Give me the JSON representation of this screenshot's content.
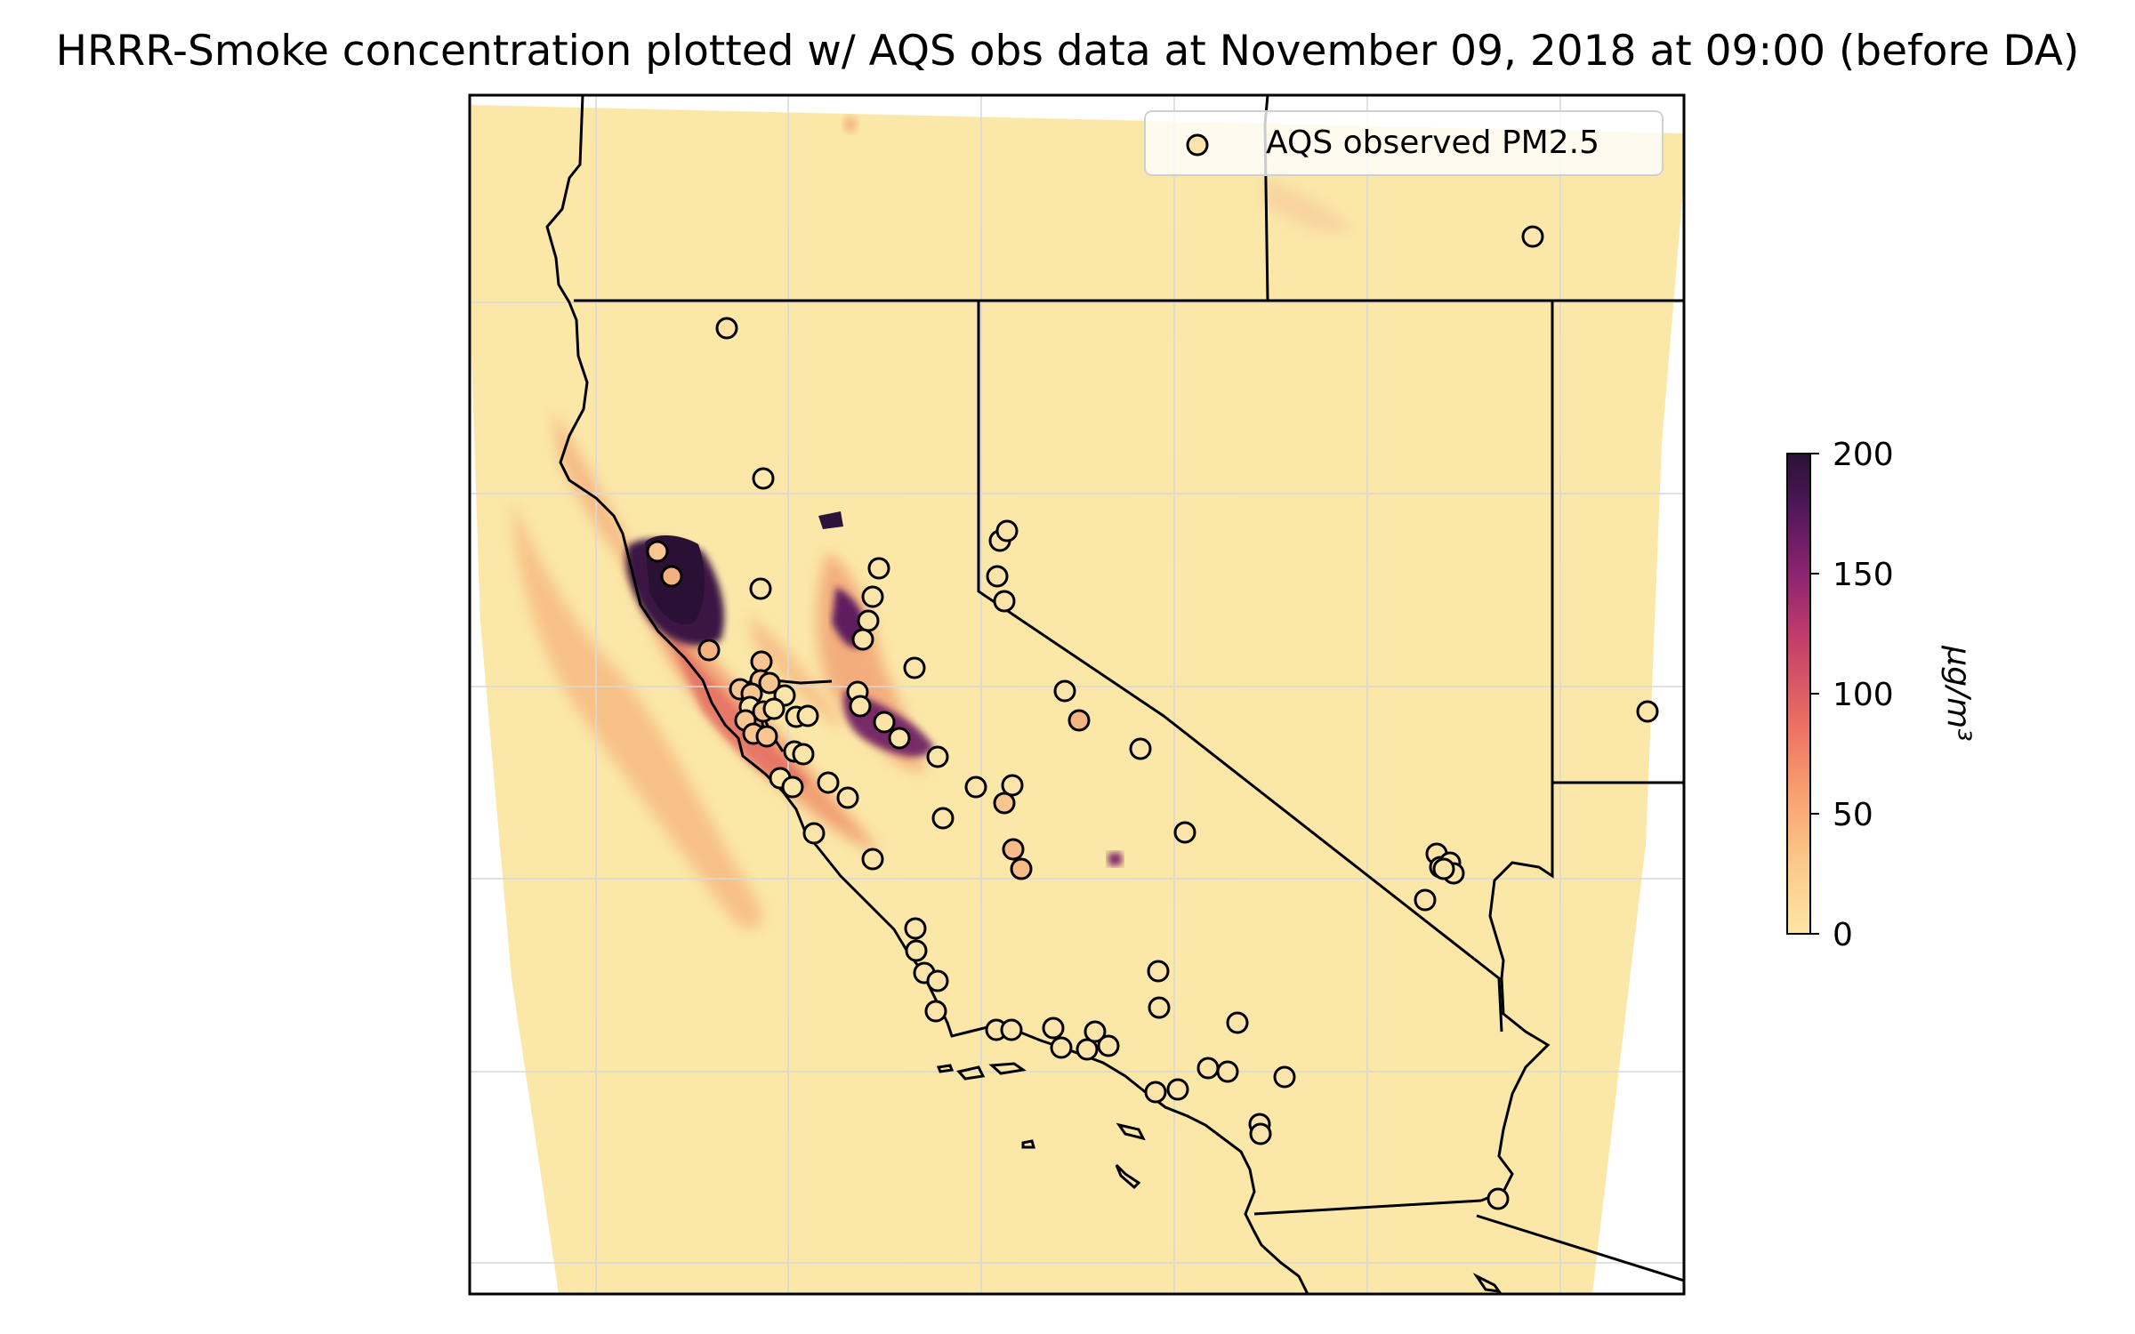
{
  "title": "HRRR-Smoke concentration plotted w/ AQS obs data at November 09, 2018 at 09:00 (before DA)",
  "colors": {
    "background_field": "#fbe8a9",
    "smoke_low": "#fcd99b",
    "smoke_mid": "#e8856a",
    "smoke_high": "#b33c60",
    "smoke_max": "#2d1239",
    "gridline": "#d9d9d9",
    "boundary": "#000000"
  },
  "legend": {
    "label": "AQS observed PM2.5",
    "placement": "upper-right"
  },
  "colorbar": {
    "label": "μg/m³",
    "ticks": [
      "0",
      "50",
      "100",
      "150",
      "200"
    ],
    "range": [
      0,
      200
    ],
    "colormap": "magma_r"
  },
  "chart_data": {
    "type": "map",
    "title": "HRRR-Smoke concentration plotted w/ AQS obs data at November 09, 2018 at 09:00 (before DA)",
    "region": "California / Nevada / Oregon",
    "field": "HRRR-Smoke PM2.5 concentration",
    "units": "μg/m³",
    "color_range": [
      0,
      200
    ],
    "observations": "AQS observed PM2.5"
  }
}
